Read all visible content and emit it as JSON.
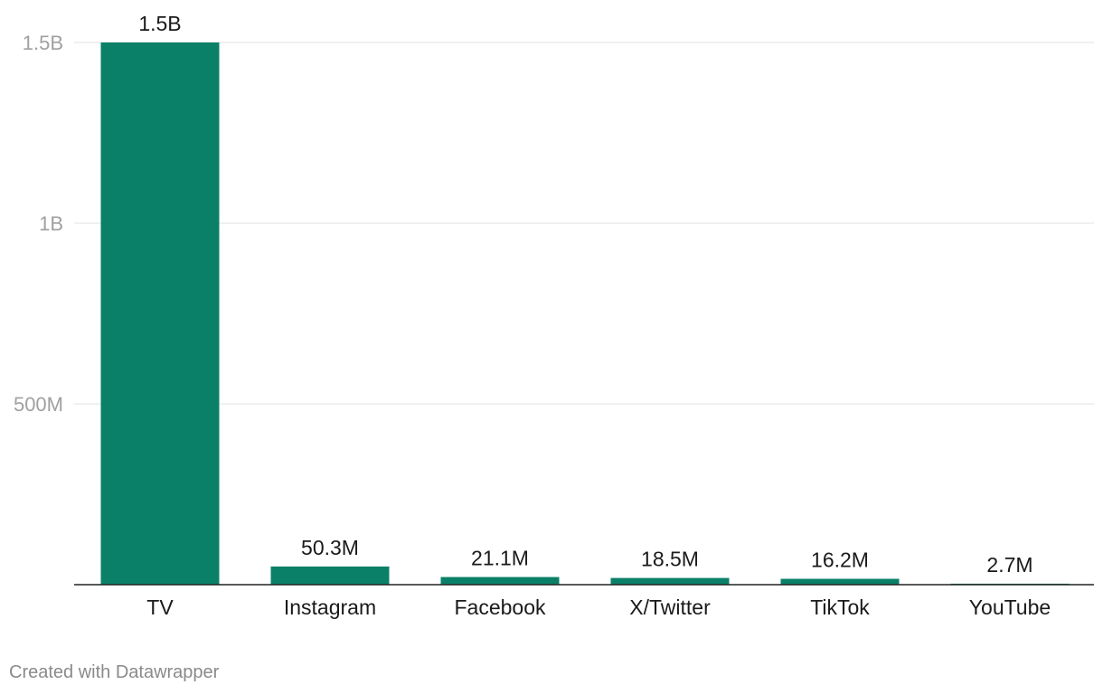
{
  "chart_data": {
    "type": "bar",
    "categories": [
      "TV",
      "Instagram",
      "Facebook",
      "X/Twitter",
      "TikTok",
      "YouTube"
    ],
    "values": [
      1500000000,
      50300000,
      21100000,
      18500000,
      16200000,
      2700000
    ],
    "value_labels": [
      "1.5B",
      "50.3M",
      "21.1M",
      "18.5M",
      "16.2M",
      "2.7M"
    ],
    "ylim": [
      0,
      1500000000
    ],
    "y_ticks": [
      {
        "value": 1500000000,
        "label": "1.5B"
      },
      {
        "value": 1000000000,
        "label": "1B"
      },
      {
        "value": 500000000,
        "label": "500M"
      }
    ],
    "grid": true,
    "bar_color": "#0b8068"
  },
  "footer": {
    "credit": "Created with Datawrapper"
  }
}
